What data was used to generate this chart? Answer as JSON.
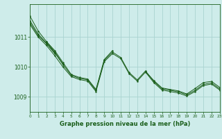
{
  "background_color": "#ceecea",
  "grid_color": "#aad4d0",
  "line_color": "#1a5e1a",
  "text_color": "#1a5e1a",
  "xlabel": "Graphe pression niveau de la mer (hPa)",
  "xlim": [
    0,
    23
  ],
  "ylim": [
    1008.5,
    1012.1
  ],
  "yticks": [
    1009,
    1010,
    1011
  ],
  "xticks": [
    0,
    1,
    2,
    3,
    4,
    5,
    6,
    7,
    8,
    9,
    10,
    11,
    12,
    13,
    14,
    15,
    16,
    17,
    18,
    19,
    20,
    21,
    22,
    23
  ],
  "series": [
    [
      1011.7,
      1011.2,
      1010.85,
      1010.55,
      1010.15,
      1009.75,
      1009.65,
      1009.6,
      1009.25,
      1010.25,
      1010.55,
      null,
      null,
      null,
      1009.85,
      1009.55,
      1009.3,
      1009.25,
      1009.2,
      1009.1,
      1009.28,
      1009.48,
      1009.52,
      1009.32
    ],
    [
      null,
      null,
      1010.85,
      1010.5,
      1010.1,
      null,
      null,
      null,
      null,
      null,
      null,
      null,
      null,
      null,
      null,
      null,
      null,
      null,
      null,
      null,
      null,
      null,
      null,
      null
    ],
    [
      1011.55,
      1011.1,
      1010.8,
      1010.48,
      1010.08,
      1009.72,
      1009.62,
      1009.57,
      1009.22,
      1010.22,
      1010.5,
      1010.32,
      1009.82,
      1009.57,
      1009.87,
      1009.52,
      1009.27,
      1009.22,
      1009.17,
      1009.07,
      1009.22,
      1009.42,
      1009.47,
      1009.27
    ],
    [
      1011.48,
      1011.05,
      1010.78,
      1010.45,
      null,
      null,
      null,
      null,
      null,
      null,
      null,
      null,
      null,
      null,
      null,
      null,
      null,
      null,
      null,
      null,
      null,
      null,
      null,
      null
    ],
    [
      1011.42,
      1011.0,
      1010.72,
      1010.38,
      1010.0,
      1009.68,
      1009.58,
      1009.53,
      1009.18,
      1010.18,
      1010.45,
      1010.28,
      1009.78,
      1009.53,
      1009.83,
      1009.48,
      1009.23,
      1009.18,
      1009.13,
      1009.03,
      1009.18,
      1009.38,
      1009.43,
      1009.23
    ]
  ]
}
